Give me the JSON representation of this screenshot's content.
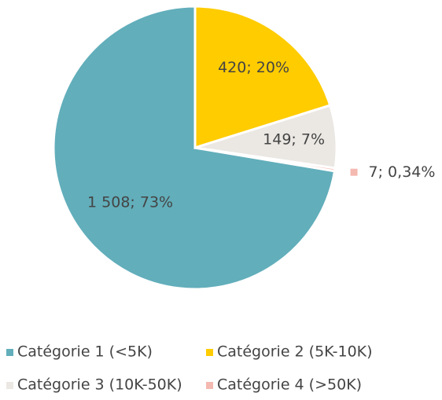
{
  "chart_data": {
    "type": "pie",
    "categories": [
      "Catégorie 1 (<5K)",
      "Catégorie 2 (5K-10K)",
      "Catégorie 3 (10K-50K)",
      "Catégorie 4 (>50K)"
    ],
    "values": [
      1508,
      420,
      149,
      7
    ],
    "value_labels": [
      "1 508; 73%",
      "420; 20%",
      "149; 7%",
      "7; 0,34%"
    ],
    "colors": [
      "#62aebb",
      "#ffcc00",
      "#ebe8e4",
      "#f4b9b0"
    ]
  }
}
